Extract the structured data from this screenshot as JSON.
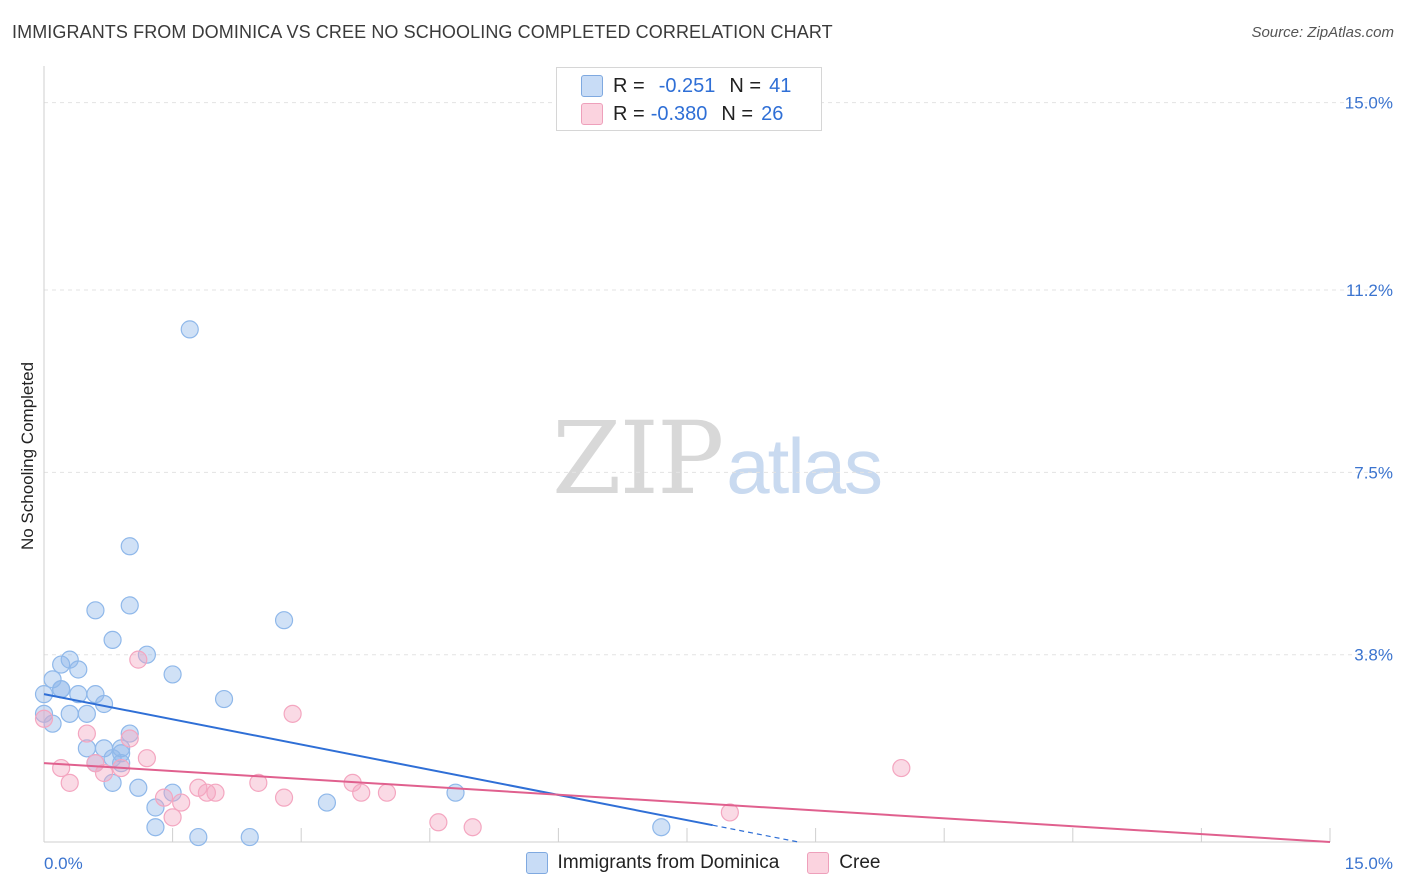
{
  "chart_data": {
    "type": "scatter",
    "title": "IMMIGRANTS FROM DOMINICA VS CREE NO SCHOOLING COMPLETED CORRELATION CHART",
    "source": "Source: ZipAtlas.com",
    "xlabel": "",
    "ylabel": "No Schooling Completed",
    "xlim": [
      0,
      15
    ],
    "ylim": [
      0,
      15.5
    ],
    "x_tick_labels": [
      "0.0%",
      "15.0%"
    ],
    "y_ticks": [
      3.8,
      7.5,
      11.2,
      15.0
    ],
    "y_tick_labels": [
      "3.8%",
      "7.5%",
      "11.2%",
      "15.0%"
    ],
    "grid": true,
    "legend": {
      "r_label": "R =",
      "n_label": "N =",
      "entries": [
        {
          "r": "-0.251",
          "n": "41"
        },
        {
          "r": "-0.380",
          "n": "26"
        }
      ]
    },
    "watermark": {
      "zip": "ZIP",
      "atlas": "atlas"
    },
    "series": [
      {
        "name": "Immigrants from Dominica",
        "color": "#8fb8ea",
        "line_color": "#2f6fd6",
        "trend": {
          "x0": 0.0,
          "y0": 3.0,
          "x1": 8.8,
          "y1": 0.0,
          "solid_until": 7.8
        },
        "points": [
          [
            0.0,
            2.6
          ],
          [
            0.0,
            3.0
          ],
          [
            0.1,
            3.3
          ],
          [
            0.1,
            2.4
          ],
          [
            0.2,
            3.1
          ],
          [
            0.2,
            3.6
          ],
          [
            0.3,
            3.7
          ],
          [
            0.3,
            2.6
          ],
          [
            0.4,
            3.5
          ],
          [
            0.4,
            3.0
          ],
          [
            0.5,
            2.6
          ],
          [
            0.5,
            1.9
          ],
          [
            0.6,
            4.7
          ],
          [
            0.6,
            1.6
          ],
          [
            0.7,
            2.8
          ],
          [
            0.7,
            1.9
          ],
          [
            0.8,
            1.7
          ],
          [
            0.8,
            1.2
          ],
          [
            0.9,
            1.6
          ],
          [
            0.9,
            1.8
          ],
          [
            0.8,
            4.1
          ],
          [
            0.9,
            1.9
          ],
          [
            1.0,
            2.2
          ],
          [
            1.0,
            4.8
          ],
          [
            1.0,
            6.0
          ],
          [
            1.1,
            1.1
          ],
          [
            1.2,
            3.8
          ],
          [
            1.3,
            0.7
          ],
          [
            1.3,
            0.3
          ],
          [
            1.5,
            1.0
          ],
          [
            1.5,
            3.4
          ],
          [
            1.7,
            10.4
          ],
          [
            1.8,
            0.1
          ],
          [
            2.1,
            2.9
          ],
          [
            2.4,
            0.1
          ],
          [
            2.8,
            4.5
          ],
          [
            3.3,
            0.8
          ],
          [
            4.8,
            1.0
          ],
          [
            7.2,
            0.3
          ],
          [
            0.2,
            3.1
          ],
          [
            0.6,
            3.0
          ]
        ]
      },
      {
        "name": "Cree",
        "color": "#f4a6c0",
        "line_color": "#e0608e",
        "trend": {
          "x0": 0.0,
          "y0": 1.6,
          "x1": 15.0,
          "y1": 0.0
        },
        "points": [
          [
            0.0,
            2.5
          ],
          [
            0.2,
            1.5
          ],
          [
            0.3,
            1.2
          ],
          [
            0.5,
            2.2
          ],
          [
            0.6,
            1.6
          ],
          [
            0.7,
            1.4
          ],
          [
            0.9,
            1.5
          ],
          [
            1.0,
            2.1
          ],
          [
            1.1,
            3.7
          ],
          [
            1.2,
            1.7
          ],
          [
            1.4,
            0.9
          ],
          [
            1.5,
            0.5
          ],
          [
            1.6,
            0.8
          ],
          [
            1.8,
            1.1
          ],
          [
            1.9,
            1.0
          ],
          [
            2.0,
            1.0
          ],
          [
            2.5,
            1.2
          ],
          [
            2.8,
            0.9
          ],
          [
            2.9,
            2.6
          ],
          [
            3.6,
            1.2
          ],
          [
            3.7,
            1.0
          ],
          [
            4.0,
            1.0
          ],
          [
            4.6,
            0.4
          ],
          [
            5.0,
            0.3
          ],
          [
            8.0,
            0.6
          ],
          [
            10.0,
            1.5
          ]
        ]
      }
    ]
  }
}
